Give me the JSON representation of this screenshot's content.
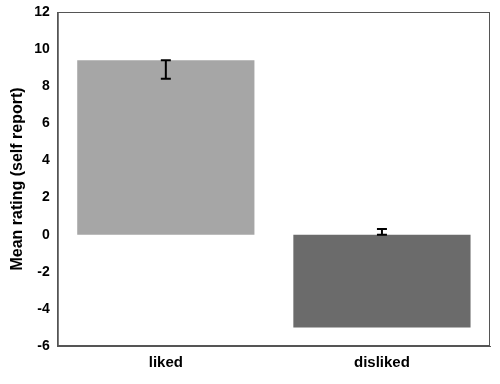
{
  "chart_data": {
    "type": "bar",
    "y_label": "Mean rating (self report)",
    "categories": [
      "liked",
      "disliked"
    ],
    "values": [
      9.4,
      -5
    ],
    "colors": [
      "#a6a6a6",
      "#6b6b6b"
    ],
    "error_bars": [
      {
        "low": 8.4,
        "high": 9.4
      },
      {
        "low": 0,
        "high": 0.3
      }
    ],
    "ylim": [
      -6,
      12
    ],
    "yticks": [
      -6,
      -4,
      -2,
      0,
      2,
      4,
      6,
      8,
      10,
      12
    ],
    "grid": false
  }
}
